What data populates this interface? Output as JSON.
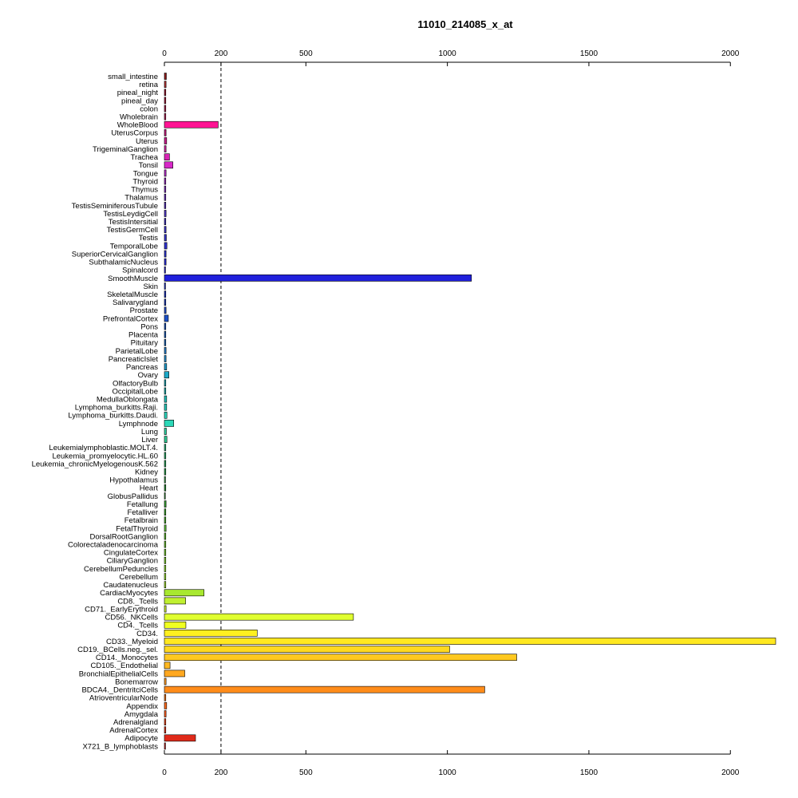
{
  "chart_data": {
    "type": "bar",
    "orientation": "horizontal",
    "title": "11010_214085_x_at",
    "xlabel": "",
    "ylabel": "",
    "xlim": [
      0,
      2160
    ],
    "x_ticks": [
      0,
      200,
      500,
      1000,
      1500,
      2000
    ],
    "reference_line": 200,
    "axis_top": true,
    "axis_bottom": true,
    "grid": false,
    "categories": [
      "small_intestine",
      "retina",
      "pineal_night",
      "pineal_day",
      "colon",
      "Wholebrain",
      "WholeBlood",
      "UterusCorpus",
      "Uterus",
      "TrigeminalGanglion",
      "Trachea",
      "Tonsil",
      "Tongue",
      "Thyroid",
      "Thymus",
      "Thalamus",
      "TestisSeminiferousTubule",
      "TestisLeydigCell",
      "TestisIntersitial",
      "TestisGermCell",
      "Testis",
      "TemporalLobe",
      "SuperiorCervicalGanglion",
      "SubthalamicNucleus",
      "Spinalcord",
      "SmoothMuscle",
      "Skin",
      "SkeletalMuscle",
      "Salivarygland",
      "Prostate",
      "PrefrontalCortex",
      "Pons",
      "Placenta",
      "Pituitary",
      "ParietalLobe",
      "PancreaticIslet",
      "Pancreas",
      "Ovary",
      "OlfactoryBulb",
      "OccipitalLobe",
      "MedullaOblongata",
      "Lymphoma_burkitts.Raji.",
      "Lymphoma_burkitts.Daudi.",
      "Lymphnode",
      "Lung",
      "Liver",
      "Leukemialymphoblastic.MOLT.4.",
      "Leukemia_promyelocytic.HL.60",
      "Leukemia_chronicMyelogenousK.562",
      "Kidney",
      "Hypothalamus",
      "Heart",
      "GlobusPallidus",
      "Fetallung",
      "Fetalliver",
      "Fetalbrain",
      "FetalThyroid",
      "DorsalRootGanglion",
      "Colorectaladenocarcinoma",
      "CingulateCortex",
      "CiliaryGanglion",
      "CerebellumPeduncles",
      "Cerebellum",
      "Caudatenucleus",
      "CardiacMyocytes",
      "CD8._Tcells",
      "CD71._EarlyErythroid",
      "CD56._NKCells",
      "CD4._Tcells",
      "CD34.",
      "CD33._Myeloid",
      "CD19._BCells.neg._sel.",
      "CD14._Monocytes",
      "CD105._Endothelial",
      "BronchialEpithelialCells",
      "Bonemarrow",
      "BDCA4._DentritciCells",
      "AtrioventricularNode",
      "Appendix",
      "Amygdala",
      "Adrenalgland",
      "AdrenalCortex",
      "Adipocyte",
      "X721_B_lymphoblasts"
    ],
    "values": [
      7,
      6,
      5,
      5,
      5,
      5,
      190,
      6,
      8,
      6,
      18,
      30,
      6,
      5,
      5,
      5,
      5,
      6,
      5,
      6,
      7,
      9,
      6,
      6,
      4,
      1085,
      4,
      5,
      5,
      6,
      14,
      5,
      5,
      5,
      6,
      6,
      8,
      16,
      5,
      5,
      8,
      8,
      9,
      33,
      7,
      9,
      5,
      5,
      5,
      5,
      4,
      5,
      3,
      6,
      5,
      5,
      6,
      5,
      5,
      5,
      5,
      5,
      5,
      5,
      140,
      75,
      6,
      668,
      76,
      328,
      2160,
      1008,
      1245,
      20,
      72,
      6,
      1132,
      5,
      8,
      6,
      5,
      5,
      110,
      4
    ],
    "colors": [
      "#8b1a1a",
      "#b03030",
      "#a01830",
      "#a81c3c",
      "#b0204a",
      "#b82458",
      "#ff1493",
      "#c01878",
      "#c81c8c",
      "#d020a0",
      "#d824b4",
      "#d828c8",
      "#b428c8",
      "#9c2cc8",
      "#8430c8",
      "#6c30c8",
      "#5a30c8",
      "#4c30c8",
      "#4030c8",
      "#3830c8",
      "#3030c8",
      "#2c30cc",
      "#2830d0",
      "#2428d4",
      "#2020d8",
      "#2020dc",
      "#1c30d8",
      "#1c38d0",
      "#1c40c8",
      "#1c48c8",
      "#1c50c8",
      "#1c5ac8",
      "#1c64c8",
      "#1c6ec8",
      "#1c78c8",
      "#1c88c8",
      "#1c98c8",
      "#1ca8c8",
      "#1cb0c0",
      "#1cb8b8",
      "#20c0b8",
      "#24c8b8",
      "#28d0b8",
      "#2cd8b8",
      "#2cd0a0",
      "#2cc890",
      "#2cc080",
      "#2cb870",
      "#2cb060",
      "#2ca850",
      "#2ca040",
      "#2c9838",
      "#2c9030",
      "#34a030",
      "#40b030",
      "#4cb830",
      "#58c030",
      "#64c830",
      "#70d030",
      "#7cd830",
      "#88e030",
      "#94e830",
      "#a0f030",
      "#acf030",
      "#a8e830",
      "#c0f030",
      "#ccf030",
      "#e0ff30",
      "#f0ff20",
      "#fff020",
      "#ffe820",
      "#ffd820",
      "#ffc820",
      "#ffb820",
      "#ffa820",
      "#ff9820",
      "#ff8c1a",
      "#ff7a1a",
      "#ff6a1a",
      "#ff5a1a",
      "#ff4a1a",
      "#f03a1a",
      "#e02a1a",
      "#c81a1a"
    ]
  }
}
